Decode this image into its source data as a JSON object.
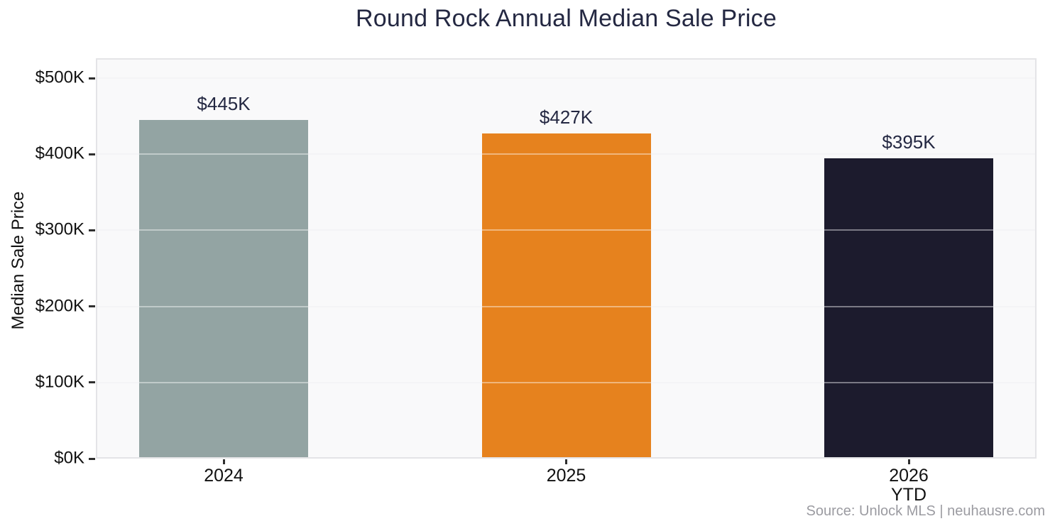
{
  "source_note": "Source: Unlock MLS | neuhausre.com",
  "chart_data": {
    "type": "bar",
    "title": "Round Rock Annual Median Sale Price",
    "categories": [
      "2024",
      "2025",
      "2026\nYTD"
    ],
    "values": [
      445,
      427,
      395
    ],
    "value_labels": [
      "$445K",
      "$427K",
      "$395K"
    ],
    "bar_colors": [
      "#93A4A3",
      "#E6821E",
      "#1C1B2D"
    ],
    "xlabel": "",
    "ylabel": "Median Sale Price",
    "ylim": [
      0,
      500
    ],
    "yticks": [
      0,
      100,
      200,
      300,
      400,
      500
    ],
    "ytick_labels": [
      "$0K",
      "$100K",
      "$200K",
      "$300K",
      "$400K",
      "$500K"
    ],
    "grid": true,
    "legend": "none",
    "plot_background": "#f9f9fa",
    "title_color": "#242842",
    "axis_text_color": "#111111",
    "source_text_color": "#9b9ba1"
  }
}
